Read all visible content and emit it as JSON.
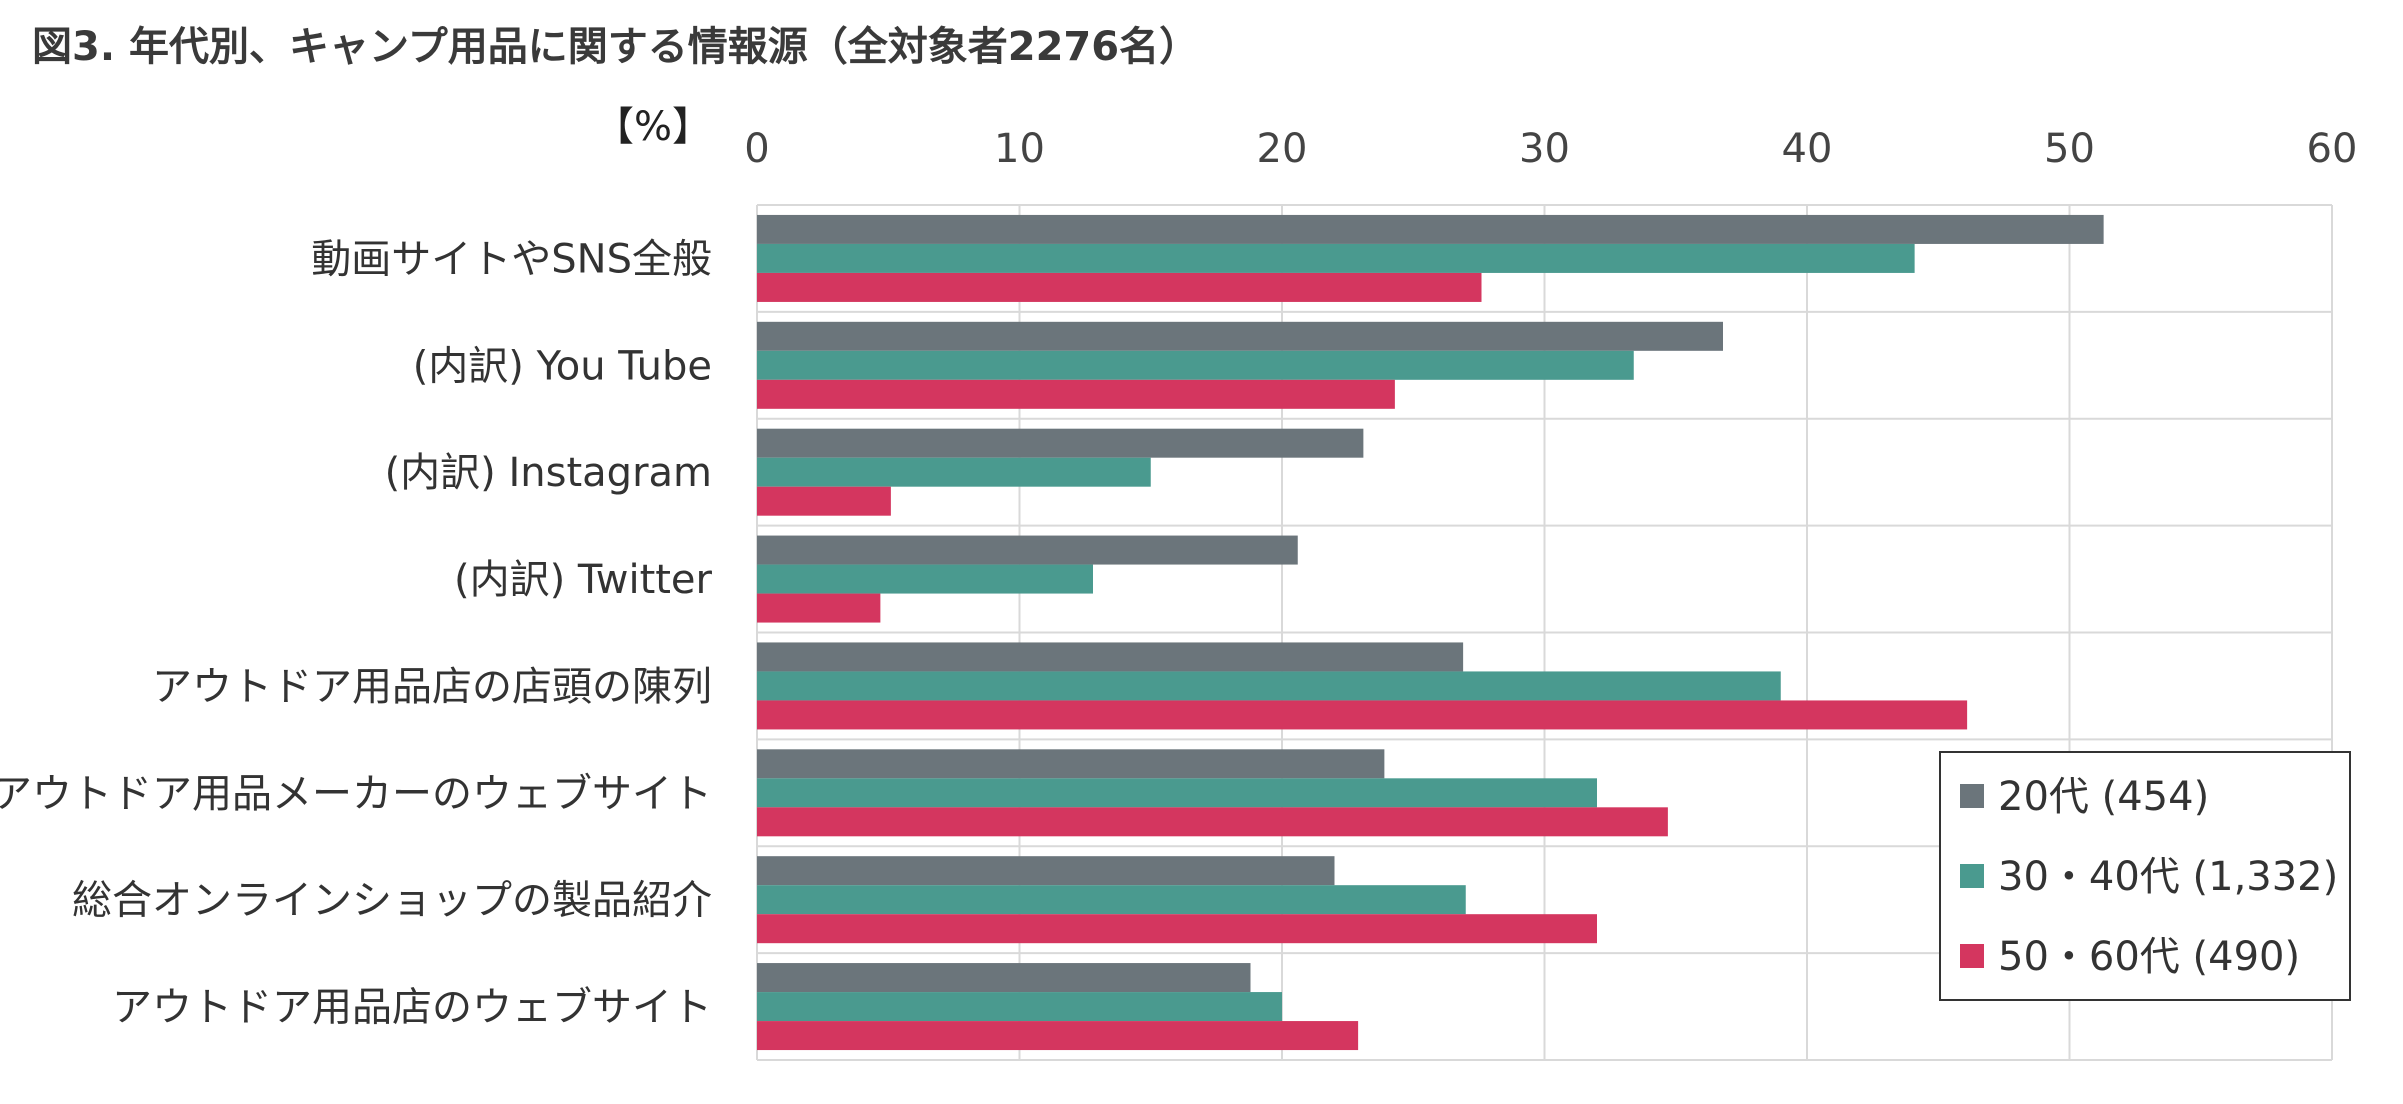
{
  "chart_data": {
    "type": "bar",
    "orientation": "horizontal",
    "title": "図3. 年代別、キャンプ用品に関する情報源（全対象者2276名）",
    "unit_label": "【%】",
    "xlim": [
      0,
      60
    ],
    "xticks": [
      0,
      10,
      20,
      30,
      40,
      50,
      60
    ],
    "grid": true,
    "legend_position": "bottom-right",
    "categories": [
      "動画サイトやSNS全般",
      "(内訳) You Tube",
      "(内訳) Instagram",
      "(内訳) Twitter",
      "アウトドア用品店の店頭の陳列",
      "アウトドア用品メーカーのウェブサイト",
      "総合オンラインショップの製品紹介",
      "アウトドア用品店のウェブサイト"
    ],
    "series": [
      {
        "name": "20代 (454)",
        "color": "#6b757b",
        "values": [
          51.3,
          36.8,
          23.1,
          20.6,
          26.9,
          23.9,
          22.0,
          18.8
        ]
      },
      {
        "name": "30・40代 (1,332)",
        "color": "#4a9a8f",
        "values": [
          44.1,
          33.4,
          15.0,
          12.8,
          39.0,
          32.0,
          27.0,
          20.0
        ]
      },
      {
        "name": "50・60代 (490)",
        "color": "#d4365f",
        "values": [
          27.6,
          24.3,
          5.1,
          4.7,
          46.1,
          34.7,
          32.0,
          22.9
        ]
      }
    ]
  }
}
